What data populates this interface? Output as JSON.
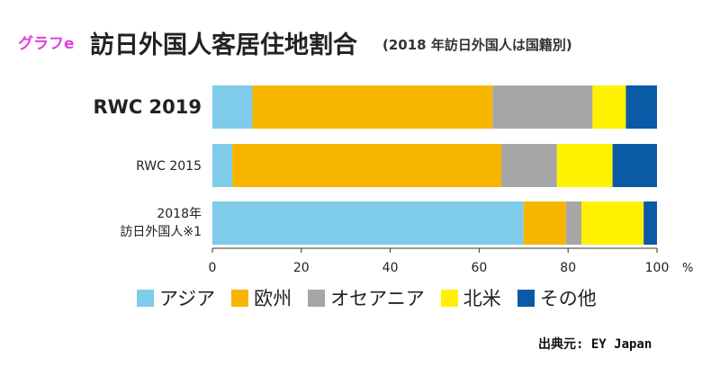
{
  "tag": "グラフe",
  "title": "訪日外国人客居住地割合",
  "subtitle": "(2018 年訪日外国人は国籍別)",
  "source": "出典元: EY Japan",
  "colors": {
    "asia": "#7ecbea",
    "europe": "#f7b500",
    "oceania": "#a6a6a6",
    "north_america": "#fff200",
    "other": "#0b5aa6"
  },
  "chart_data": {
    "type": "bar",
    "orientation": "horizontal",
    "stacked": true,
    "categories": [
      "RWC 2019",
      "RWC 2015",
      "2018年 訪日外国人※1"
    ],
    "series": [
      {
        "name": "アジア",
        "values": [
          9,
          4.5,
          70
        ]
      },
      {
        "name": "欧州",
        "values": [
          54,
          60.5,
          9.5
        ]
      },
      {
        "name": "オセアニア",
        "values": [
          22.5,
          12.5,
          3.5
        ]
      },
      {
        "name": "北米",
        "values": [
          7.5,
          12.5,
          14
        ]
      },
      {
        "name": "その他",
        "values": [
          7,
          10,
          3
        ]
      }
    ],
    "xlim": [
      0,
      100
    ],
    "xticks": [
      "0",
      "20",
      "40",
      "60",
      "80",
      "100"
    ],
    "xunit": "%",
    "grid": false,
    "legend_position": "bottom",
    "category_labels": [
      {
        "line1": "RWC 2019",
        "line2": "",
        "bold": true
      },
      {
        "line1": "RWC 2015",
        "line2": "",
        "bold": false
      },
      {
        "line1": "2018年",
        "line2": "訪日外国人※1",
        "bold": false
      }
    ]
  }
}
